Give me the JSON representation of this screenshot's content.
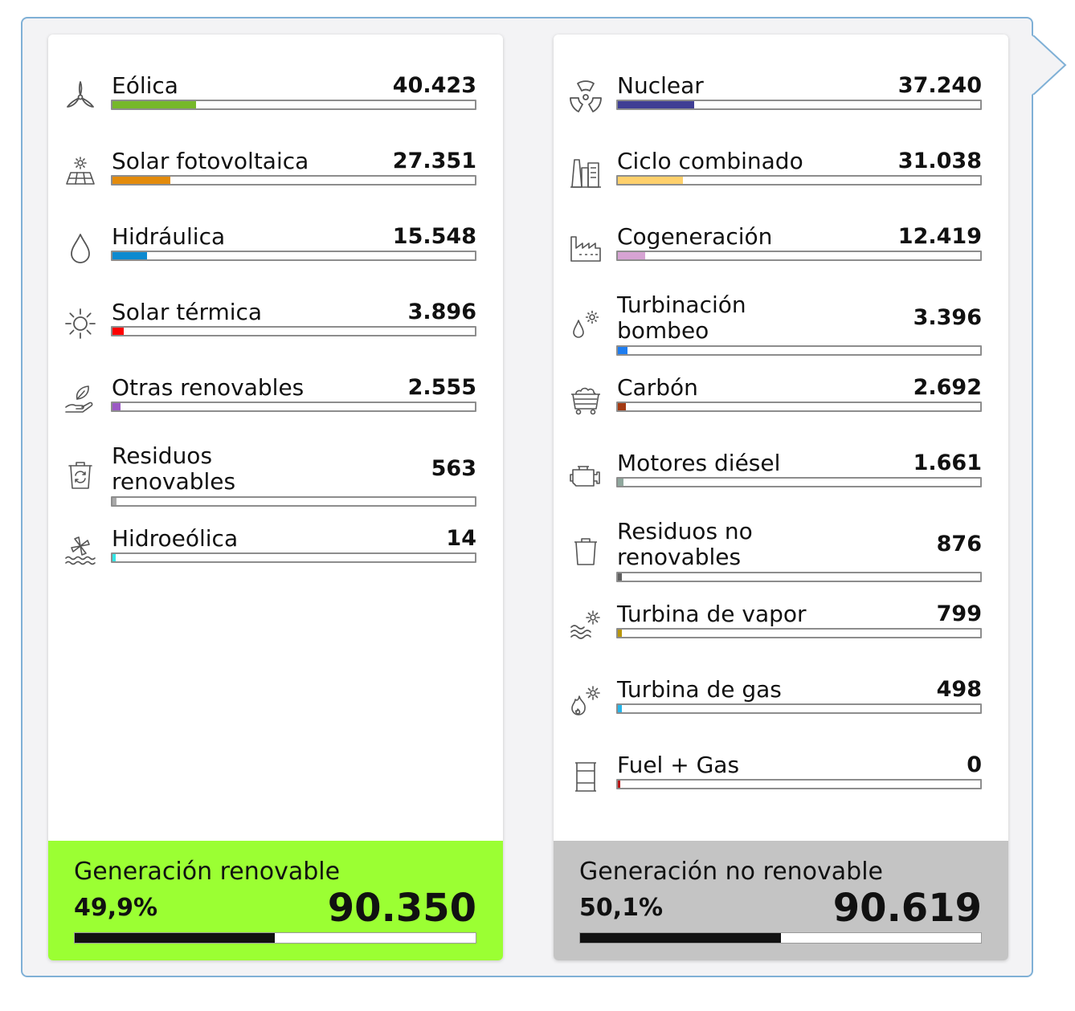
{
  "renewable": {
    "items": [
      {
        "label": "Eólica",
        "value": "40.423",
        "fraction": 0.23,
        "color": "#76b82a",
        "icon": "wind-turbine-icon"
      },
      {
        "label": "Solar fotovoltaica",
        "value": "27.351",
        "fraction": 0.16,
        "color": "#e38b0b",
        "icon": "solar-panel-icon"
      },
      {
        "label": "Hidráulica",
        "value": "15.548",
        "fraction": 0.095,
        "color": "#0d8ad0",
        "icon": "water-drop-icon"
      },
      {
        "label": "Solar térmica",
        "value": "3.896",
        "fraction": 0.03,
        "color": "#ff0000",
        "icon": "sun-icon"
      },
      {
        "label": "Otras renovables",
        "value": "2.555",
        "fraction": 0.022,
        "color": "#9b59c4",
        "icon": "leaf-hand-icon"
      },
      {
        "label": "Residuos renovables",
        "value": "563",
        "fraction": 0.012,
        "color": "#a8a8a8",
        "icon": "recycle-bin-icon"
      },
      {
        "label": "Hidroeólica",
        "value": "14",
        "fraction": 0.008,
        "color": "#33e6e6",
        "icon": "wind-water-icon"
      }
    ],
    "summary": {
      "title": "Generación renovable",
      "percent": "49,9%",
      "total": "90.350",
      "fraction": 0.499,
      "color": "#9bff33"
    }
  },
  "nonrenewable": {
    "items": [
      {
        "label": "Nuclear",
        "value": "37.240",
        "fraction": 0.21,
        "color": "#3f3e94",
        "icon": "nuclear-icon"
      },
      {
        "label": "Ciclo combinado",
        "value": "31.038",
        "fraction": 0.18,
        "color": "#ffd06b",
        "icon": "power-plant-icon"
      },
      {
        "label": "Cogeneración",
        "value": "12.419",
        "fraction": 0.075,
        "color": "#d6a3d3",
        "icon": "factory-icon"
      },
      {
        "label": "Turbinación bombeo",
        "value": "3.396",
        "fraction": 0.027,
        "color": "#1e7df0",
        "icon": "drop-gear-icon"
      },
      {
        "label": "Carbón",
        "value": "2.692",
        "fraction": 0.022,
        "color": "#a33a13",
        "icon": "coal-cart-icon"
      },
      {
        "label": "Motores diésel",
        "value": "1.661",
        "fraction": 0.016,
        "color": "#8fa79d",
        "icon": "engine-icon"
      },
      {
        "label": "Residuos no renovables",
        "value": "876",
        "fraction": 0.012,
        "color": "#606060",
        "icon": "trash-bin-icon"
      },
      {
        "label": "Turbina de vapor",
        "value": "799",
        "fraction": 0.012,
        "color": "#b8960b",
        "icon": "steam-gear-icon"
      },
      {
        "label": "Turbina de gas",
        "value": "498",
        "fraction": 0.012,
        "color": "#25b6ea",
        "icon": "flame-gear-icon"
      },
      {
        "label": "Fuel + Gas",
        "value": "0",
        "fraction": 0.006,
        "color": "#b81616",
        "icon": "fuel-barrel-icon"
      }
    ],
    "summary": {
      "title": "Generación no renovable",
      "percent": "50,1%",
      "total": "90.619",
      "fraction": 0.501,
      "color": "#c4c4c4"
    }
  }
}
